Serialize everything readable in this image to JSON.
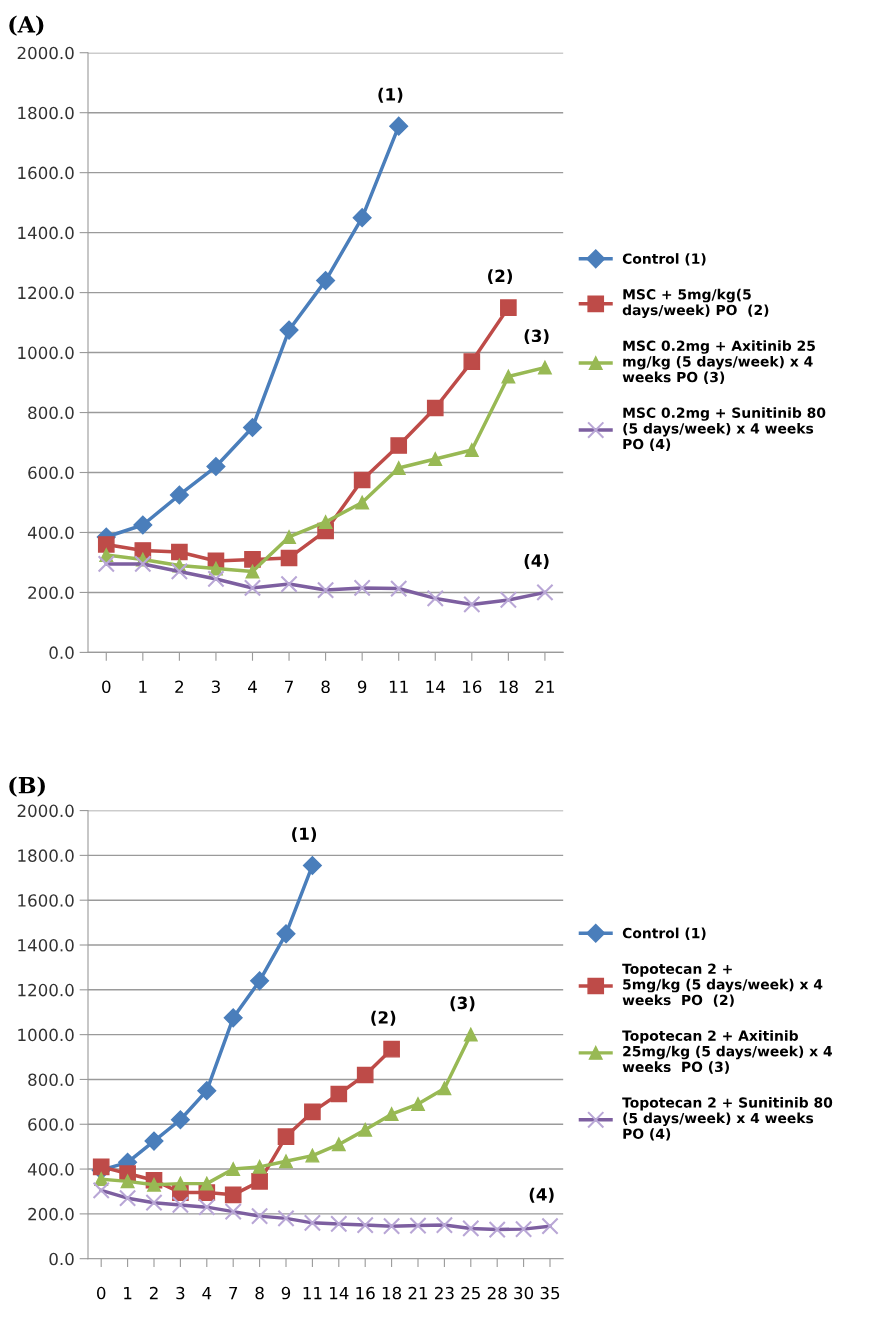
{
  "chart_data": [
    {
      "type": "line",
      "title": "(A)",
      "categories": [
        "0",
        "1",
        "2",
        "3",
        "4",
        "7",
        "8",
        "9",
        "11",
        "14",
        "16",
        "18",
        "21"
      ],
      "series": [
        {
          "name": "Control (1)",
          "color": "#4a7ebb",
          "marker": "diamond",
          "values": [
            385,
            425,
            525,
            620,
            750,
            1075,
            1240,
            1450,
            1755,
            null,
            null,
            null,
            null
          ]
        },
        {
          "name": "MSC + 5mg/kg(5\ndays/week) PO  (2)",
          "color": "#be4b48",
          "marker": "square",
          "values": [
            360,
            340,
            335,
            305,
            310,
            315,
            405,
            575,
            690,
            815,
            970,
            1150,
            null
          ]
        },
        {
          "name": "MSC 0.2mg + Axitinib 25\nmg/kg (5 days/week) x 4\nweeks PO (3)",
          "color": "#98b954",
          "marker": "triangle",
          "values": [
            325,
            310,
            290,
            280,
            270,
            385,
            435,
            500,
            615,
            645,
            675,
            920,
            950
          ]
        },
        {
          "name": "MSC 0.2mg + Sunitinib 80\n(5 days/week) x 4 weeks\nPO (4)",
          "color": "#7d5fa0",
          "marker": "cross",
          "values": [
            295,
            295,
            270,
            245,
            215,
            228,
            208,
            215,
            213,
            180,
            160,
            175,
            200
          ]
        }
      ],
      "ylim": [
        0,
        2000
      ],
      "yticks": [
        {
          "value": 0,
          "label": "0.0"
        },
        {
          "value": 200,
          "label": "200.0"
        },
        {
          "value": 400,
          "label": "400.0"
        },
        {
          "value": 600,
          "label": "600.0"
        },
        {
          "value": 800,
          "label": "800.0"
        },
        {
          "value": 1000,
          "label": "1000.0"
        },
        {
          "value": 1200,
          "label": "1200.0"
        },
        {
          "value": 1400,
          "label": "1400.0"
        },
        {
          "value": 1600,
          "label": "1600.0"
        },
        {
          "value": 1800,
          "label": "1800.0"
        },
        {
          "value": 2000,
          "label": "2000.0"
        }
      ],
      "grid": "y",
      "legend": "right",
      "annotations": [
        "(1)",
        "(2)",
        "(3)",
        "(4)"
      ]
    },
    {
      "type": "line",
      "title": "(B)",
      "categories": [
        "0",
        "1",
        "2",
        "3",
        "4",
        "7",
        "8",
        "9",
        "11",
        "14",
        "16",
        "18",
        "21",
        "23",
        "25",
        "28",
        "30",
        "35"
      ],
      "series": [
        {
          "name": "Control (1)",
          "color": "#4a7ebb",
          "marker": "diamond",
          "values": [
            395,
            430,
            525,
            620,
            750,
            1075,
            1240,
            1450,
            1755,
            null,
            null,
            null,
            null,
            null,
            null,
            null,
            null,
            null
          ]
        },
        {
          "name": "Topotecan 2 +\n5mg/kg (5 days/week) x 4\nweeks  PO  (2)",
          "color": "#be4b48",
          "marker": "square",
          "values": [
            410,
            380,
            350,
            295,
            295,
            285,
            345,
            545,
            655,
            735,
            820,
            935,
            null,
            null,
            null,
            null,
            null,
            null
          ]
        },
        {
          "name": "Topotecan 2 + Axitinib\n25mg/kg (5 days/week) x 4\nweeks  PO (3)",
          "color": "#98b954",
          "marker": "triangle",
          "values": [
            355,
            345,
            330,
            335,
            335,
            400,
            410,
            435,
            460,
            510,
            575,
            645,
            690,
            760,
            1000,
            null,
            null,
            null
          ]
        },
        {
          "name": "Topotecan 2 + Sunitinib 80\n(5 days/week) x 4 weeks\nPO (4)",
          "color": "#7d5fa0",
          "marker": "cross",
          "values": [
            305,
            270,
            250,
            240,
            230,
            210,
            190,
            180,
            160,
            155,
            150,
            145,
            148,
            150,
            135,
            130,
            132,
            145
          ]
        }
      ],
      "ylim": [
        0,
        2000
      ],
      "yticks": [
        {
          "value": 0,
          "label": "0.0"
        },
        {
          "value": 200,
          "label": "200.0"
        },
        {
          "value": 400,
          "label": "400.0"
        },
        {
          "value": 600,
          "label": "600.0"
        },
        {
          "value": 800,
          "label": "800.0"
        },
        {
          "value": 1000,
          "label": "1000.0"
        },
        {
          "value": 1200,
          "label": "1200.0"
        },
        {
          "value": 1400,
          "label": "1400.0"
        },
        {
          "value": 1600,
          "label": "1600.0"
        },
        {
          "value": 1800,
          "label": "1800.0"
        },
        {
          "value": 2000,
          "label": "2000.0"
        }
      ],
      "grid": "y",
      "legend": "right",
      "annotations": [
        "(1)",
        "(2)",
        "(3)",
        "(4)"
      ]
    }
  ]
}
